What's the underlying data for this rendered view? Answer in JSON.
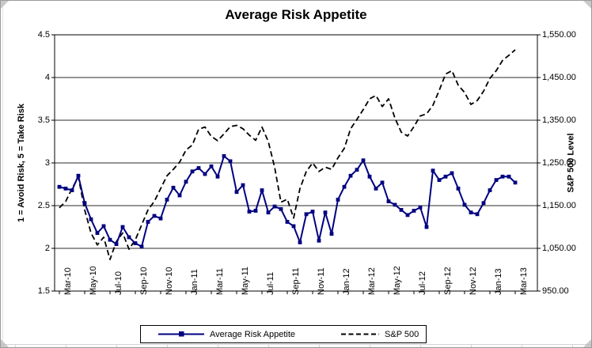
{
  "chart_data": {
    "type": "line",
    "title": "Average Risk Appetite",
    "grid": "horizontal",
    "x_tick_labels": [
      "Mar-10",
      "May-10",
      "Jul-10",
      "Sep-10",
      "Nov-10",
      "Jan-11",
      "Mar-11",
      "May-11",
      "Jul-11",
      "Sep-11",
      "Nov-11",
      "Jan-12",
      "Mar-12",
      "May-12",
      "Jul-12",
      "Sep-12",
      "Nov-12",
      "Jan-13",
      "Mar-13"
    ],
    "x_points_per_label": 4,
    "y_left": {
      "title": "1 = Avoid Risk, 5 = Take Risk",
      "min": 1.5,
      "max": 4.5,
      "step": 0.5,
      "tick_labels": [
        "4.5",
        "4",
        "3.5",
        "3",
        "2.5",
        "2",
        "1.5"
      ]
    },
    "y_right": {
      "title": "S&P 500 Level",
      "min": 950,
      "max": 1550,
      "step": 100,
      "tick_labels": [
        "1,550.00",
        "1,450.00",
        "1,350.00",
        "1,250.00",
        "1,150.00",
        "1,050.00",
        "950.00"
      ]
    },
    "legend": {
      "position": "bottom"
    },
    "series": [
      {
        "name": "Average Risk Appetite",
        "axis": "left",
        "color": "#000080",
        "style": "solid-square-markers",
        "values": [
          2.72,
          2.7,
          2.68,
          2.85,
          2.53,
          2.34,
          2.18,
          2.26,
          2.1,
          2.05,
          2.25,
          2.13,
          2.06,
          2.02,
          2.31,
          2.38,
          2.35,
          2.57,
          2.71,
          2.62,
          2.78,
          2.9,
          2.94,
          2.87,
          2.96,
          2.84,
          3.08,
          3.02,
          2.66,
          2.74,
          2.43,
          2.44,
          2.68,
          2.42,
          2.49,
          2.46,
          2.31,
          2.26,
          2.07,
          2.4,
          2.43,
          2.09,
          2.42,
          2.17,
          2.57,
          2.72,
          2.85,
          2.92,
          3.03,
          2.84,
          2.7,
          2.77,
          2.55,
          2.51,
          2.45,
          2.39,
          2.44,
          2.48,
          2.25,
          2.91,
          2.8,
          2.84,
          2.88,
          2.7,
          2.51,
          2.42,
          2.4,
          2.53,
          2.68,
          2.8,
          2.84,
          2.84,
          2.77
        ]
      },
      {
        "name": "S&P 500",
        "axis": "right",
        "color": "#000000",
        "style": "dashed",
        "values": [
          1145,
          1160,
          1190,
          1217,
          1140,
          1086,
          1058,
          1076,
          1024,
          1066,
          1086,
          1048,
          1070,
          1105,
          1140,
          1160,
          1190,
          1220,
          1235,
          1252,
          1280,
          1292,
          1329,
          1334,
          1312,
          1302,
          1318,
          1335,
          1338,
          1330,
          1315,
          1303,
          1334,
          1300,
          1240,
          1158,
          1165,
          1121,
          1190,
          1230,
          1250,
          1230,
          1240,
          1235,
          1262,
          1284,
          1330,
          1352,
          1375,
          1400,
          1408,
          1382,
          1400,
          1355,
          1322,
          1313,
          1335,
          1360,
          1365,
          1385,
          1420,
          1458,
          1466,
          1432,
          1415,
          1387,
          1396,
          1418,
          1448,
          1466,
          1490,
          1502,
          1515
        ]
      }
    ]
  }
}
